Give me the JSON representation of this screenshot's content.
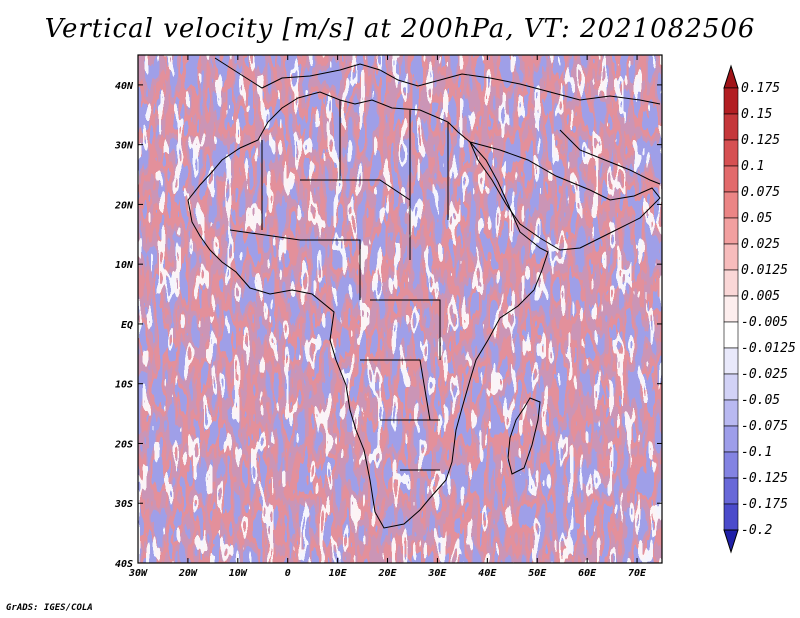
{
  "title": "Vertical velocity [m/s] at 200hPa, VT: 2021082506",
  "credit": "GrADS: IGES/COLA",
  "map": {
    "lon_range": [
      -30,
      75
    ],
    "lat_range": [
      -40,
      45
    ],
    "lon_ticks": [
      {
        "value": -30,
        "label": "30W"
      },
      {
        "value": -20,
        "label": "20W"
      },
      {
        "value": -10,
        "label": "10W"
      },
      {
        "value": 0,
        "label": "0"
      },
      {
        "value": 10,
        "label": "10E"
      },
      {
        "value": 20,
        "label": "20E"
      },
      {
        "value": 30,
        "label": "30E"
      },
      {
        "value": 40,
        "label": "40E"
      },
      {
        "value": 50,
        "label": "50E"
      },
      {
        "value": 60,
        "label": "60E"
      },
      {
        "value": 70,
        "label": "70E"
      }
    ],
    "lat_ticks": [
      {
        "value": 40,
        "label": "40N"
      },
      {
        "value": 30,
        "label": "30N"
      },
      {
        "value": 20,
        "label": "20N"
      },
      {
        "value": 10,
        "label": "10N"
      },
      {
        "value": 0,
        "label": "EQ"
      },
      {
        "value": -10,
        "label": "10S"
      },
      {
        "value": -20,
        "label": "20S"
      },
      {
        "value": -30,
        "label": "30S"
      },
      {
        "value": -40,
        "label": "40S"
      }
    ]
  },
  "colorbar": {
    "levels": [
      {
        "label": "0.175",
        "color": "#b21e22"
      },
      {
        "label": "0.15",
        "color": "#c5373a"
      },
      {
        "label": "0.125",
        "color": "#d65052"
      },
      {
        "label": "0.1",
        "color": "#e26a6b"
      },
      {
        "label": "0.075",
        "color": "#eb8585"
      },
      {
        "label": "0.05",
        "color": "#f2a0a0"
      },
      {
        "label": "0.025",
        "color": "#f7bcbc"
      },
      {
        "label": "0.0125",
        "color": "#fad7d7"
      },
      {
        "label": "0.005",
        "color": "#fdeeee"
      },
      {
        "label": "-0.005",
        "color": "#ffffff"
      },
      {
        "label": "-0.0125",
        "color": "#e9e9fb"
      },
      {
        "label": "-0.025",
        "color": "#d2d2f6"
      },
      {
        "label": "-0.05",
        "color": "#b9b9f1"
      },
      {
        "label": "-0.075",
        "color": "#9e9eea"
      },
      {
        "label": "-0.1",
        "color": "#8383e2"
      },
      {
        "label": "-0.125",
        "color": "#6868d8"
      },
      {
        "label": "-0.175",
        "color": "#4b4bcb"
      },
      {
        "label": "-0.2",
        "color": "#2e2eb8"
      }
    ],
    "top_color": "#a01418",
    "bottom_color": "#2020a8"
  }
}
